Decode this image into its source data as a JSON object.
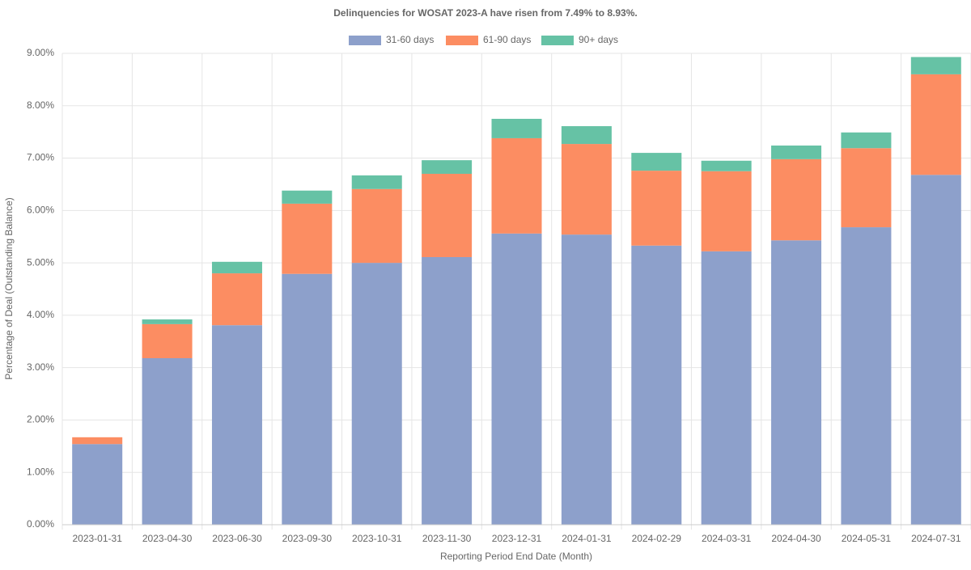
{
  "chart_data": {
    "type": "stacked-bar",
    "title": "Delinquencies for WOSAT 2023-A have risen from 7.49% to 8.93%.",
    "x_label": "Reporting Period End Date (Month)",
    "y_label": "Percentage of Deal (Outstanding Balance)",
    "categories": [
      "2023-01-31",
      "2023-04-30",
      "2023-06-30",
      "2023-09-30",
      "2023-10-31",
      "2023-11-30",
      "2023-12-31",
      "2024-01-31",
      "2024-02-29",
      "2024-03-31",
      "2024-04-30",
      "2024-05-31",
      "2024-07-31"
    ],
    "series": [
      {
        "name": "31-60 days",
        "color": "#8da0cb",
        "values": [
          1.54,
          3.18,
          3.81,
          4.79,
          5.0,
          5.11,
          5.56,
          5.54,
          5.33,
          5.22,
          5.43,
          5.68,
          6.68
        ]
      },
      {
        "name": "61-90 days",
        "color": "#fc8d62",
        "values": [
          0.13,
          0.65,
          0.99,
          1.34,
          1.41,
          1.59,
          1.82,
          1.73,
          1.43,
          1.53,
          1.55,
          1.51,
          1.92
        ]
      },
      {
        "name": "90+ days",
        "color": "#66c2a5",
        "values": [
          0,
          0.09,
          0.22,
          0.25,
          0.26,
          0.26,
          0.37,
          0.34,
          0.34,
          0.2,
          0.26,
          0.3,
          0.33
        ]
      }
    ],
    "ylim": [
      0,
      9
    ],
    "yticks": [
      {
        "value": 0,
        "label": "0.00%"
      },
      {
        "value": 1,
        "label": "1.00%"
      },
      {
        "value": 2,
        "label": "2.00%"
      },
      {
        "value": 3,
        "label": "3.00%"
      },
      {
        "value": 4,
        "label": "4.00%"
      },
      {
        "value": 5,
        "label": "5.00%"
      },
      {
        "value": 6,
        "label": "6.00%"
      },
      {
        "value": 7,
        "label": "7.00%"
      },
      {
        "value": 8,
        "label": "8.00%"
      },
      {
        "value": 9,
        "label": "9.00%"
      }
    ],
    "grid": true,
    "legend": "top"
  }
}
